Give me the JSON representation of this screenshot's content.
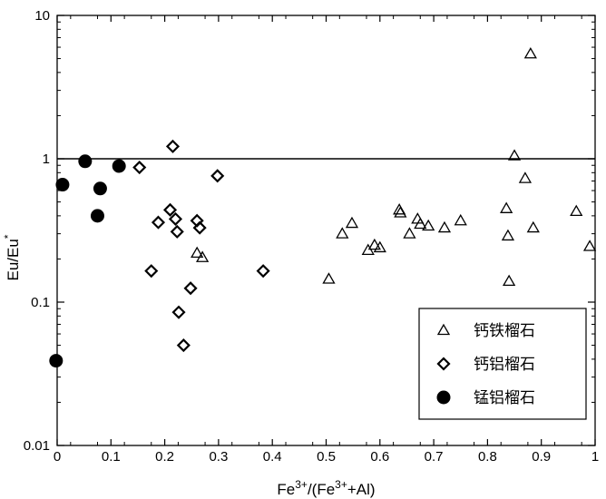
{
  "chart_data": {
    "type": "scatter",
    "xlabel": "Fe3+/(Fe3++Al)",
    "ylabel": "Eu/Eu*",
    "xlim": [
      0,
      1
    ],
    "ylim": [
      0.01,
      10
    ],
    "yscale": "log",
    "x_ticks": [
      "0",
      "0.1",
      "0.2",
      "0.3",
      "0.4",
      "0.5",
      "0.6",
      "0.7",
      "0.8",
      "0.9",
      "1"
    ],
    "y_ticks": [
      "0.01",
      "0.1",
      "1",
      "10"
    ],
    "reference_line_y": 1,
    "legend_position": "bottom-right",
    "series": [
      {
        "name": "钙铁榴石",
        "marker": "triangle",
        "points": [
          [
            0.26,
            0.22
          ],
          [
            0.27,
            0.205
          ],
          [
            0.505,
            0.145
          ],
          [
            0.53,
            0.3
          ],
          [
            0.548,
            0.355
          ],
          [
            0.578,
            0.23
          ],
          [
            0.59,
            0.25
          ],
          [
            0.6,
            0.24
          ],
          [
            0.636,
            0.44
          ],
          [
            0.638,
            0.42
          ],
          [
            0.655,
            0.3
          ],
          [
            0.67,
            0.38
          ],
          [
            0.675,
            0.35
          ],
          [
            0.69,
            0.34
          ],
          [
            0.72,
            0.33
          ],
          [
            0.75,
            0.37
          ],
          [
            0.835,
            0.45
          ],
          [
            0.838,
            0.29
          ],
          [
            0.84,
            0.14
          ],
          [
            0.85,
            1.05
          ],
          [
            0.87,
            0.73
          ],
          [
            0.88,
            5.4
          ],
          [
            0.885,
            0.33
          ],
          [
            0.965,
            0.43
          ],
          [
            0.99,
            0.245
          ]
        ]
      },
      {
        "name": "钙铝榴石",
        "marker": "diamond",
        "points": [
          [
            0.153,
            0.87
          ],
          [
            0.175,
            0.165
          ],
          [
            0.188,
            0.36
          ],
          [
            0.21,
            0.44
          ],
          [
            0.215,
            1.22
          ],
          [
            0.22,
            0.38
          ],
          [
            0.223,
            0.31
          ],
          [
            0.226,
            0.085
          ],
          [
            0.235,
            0.05
          ],
          [
            0.248,
            0.125
          ],
          [
            0.26,
            0.37
          ],
          [
            0.265,
            0.33
          ],
          [
            0.298,
            0.76
          ],
          [
            0.383,
            0.165
          ]
        ]
      },
      {
        "name": "锰铝榴石",
        "marker": "circle",
        "points": [
          [
            -0.002,
            0.039
          ],
          [
            0.01,
            0.66
          ],
          [
            0.052,
            0.96
          ],
          [
            0.075,
            0.4
          ],
          [
            0.08,
            0.62
          ],
          [
            0.115,
            0.89
          ]
        ]
      }
    ]
  }
}
